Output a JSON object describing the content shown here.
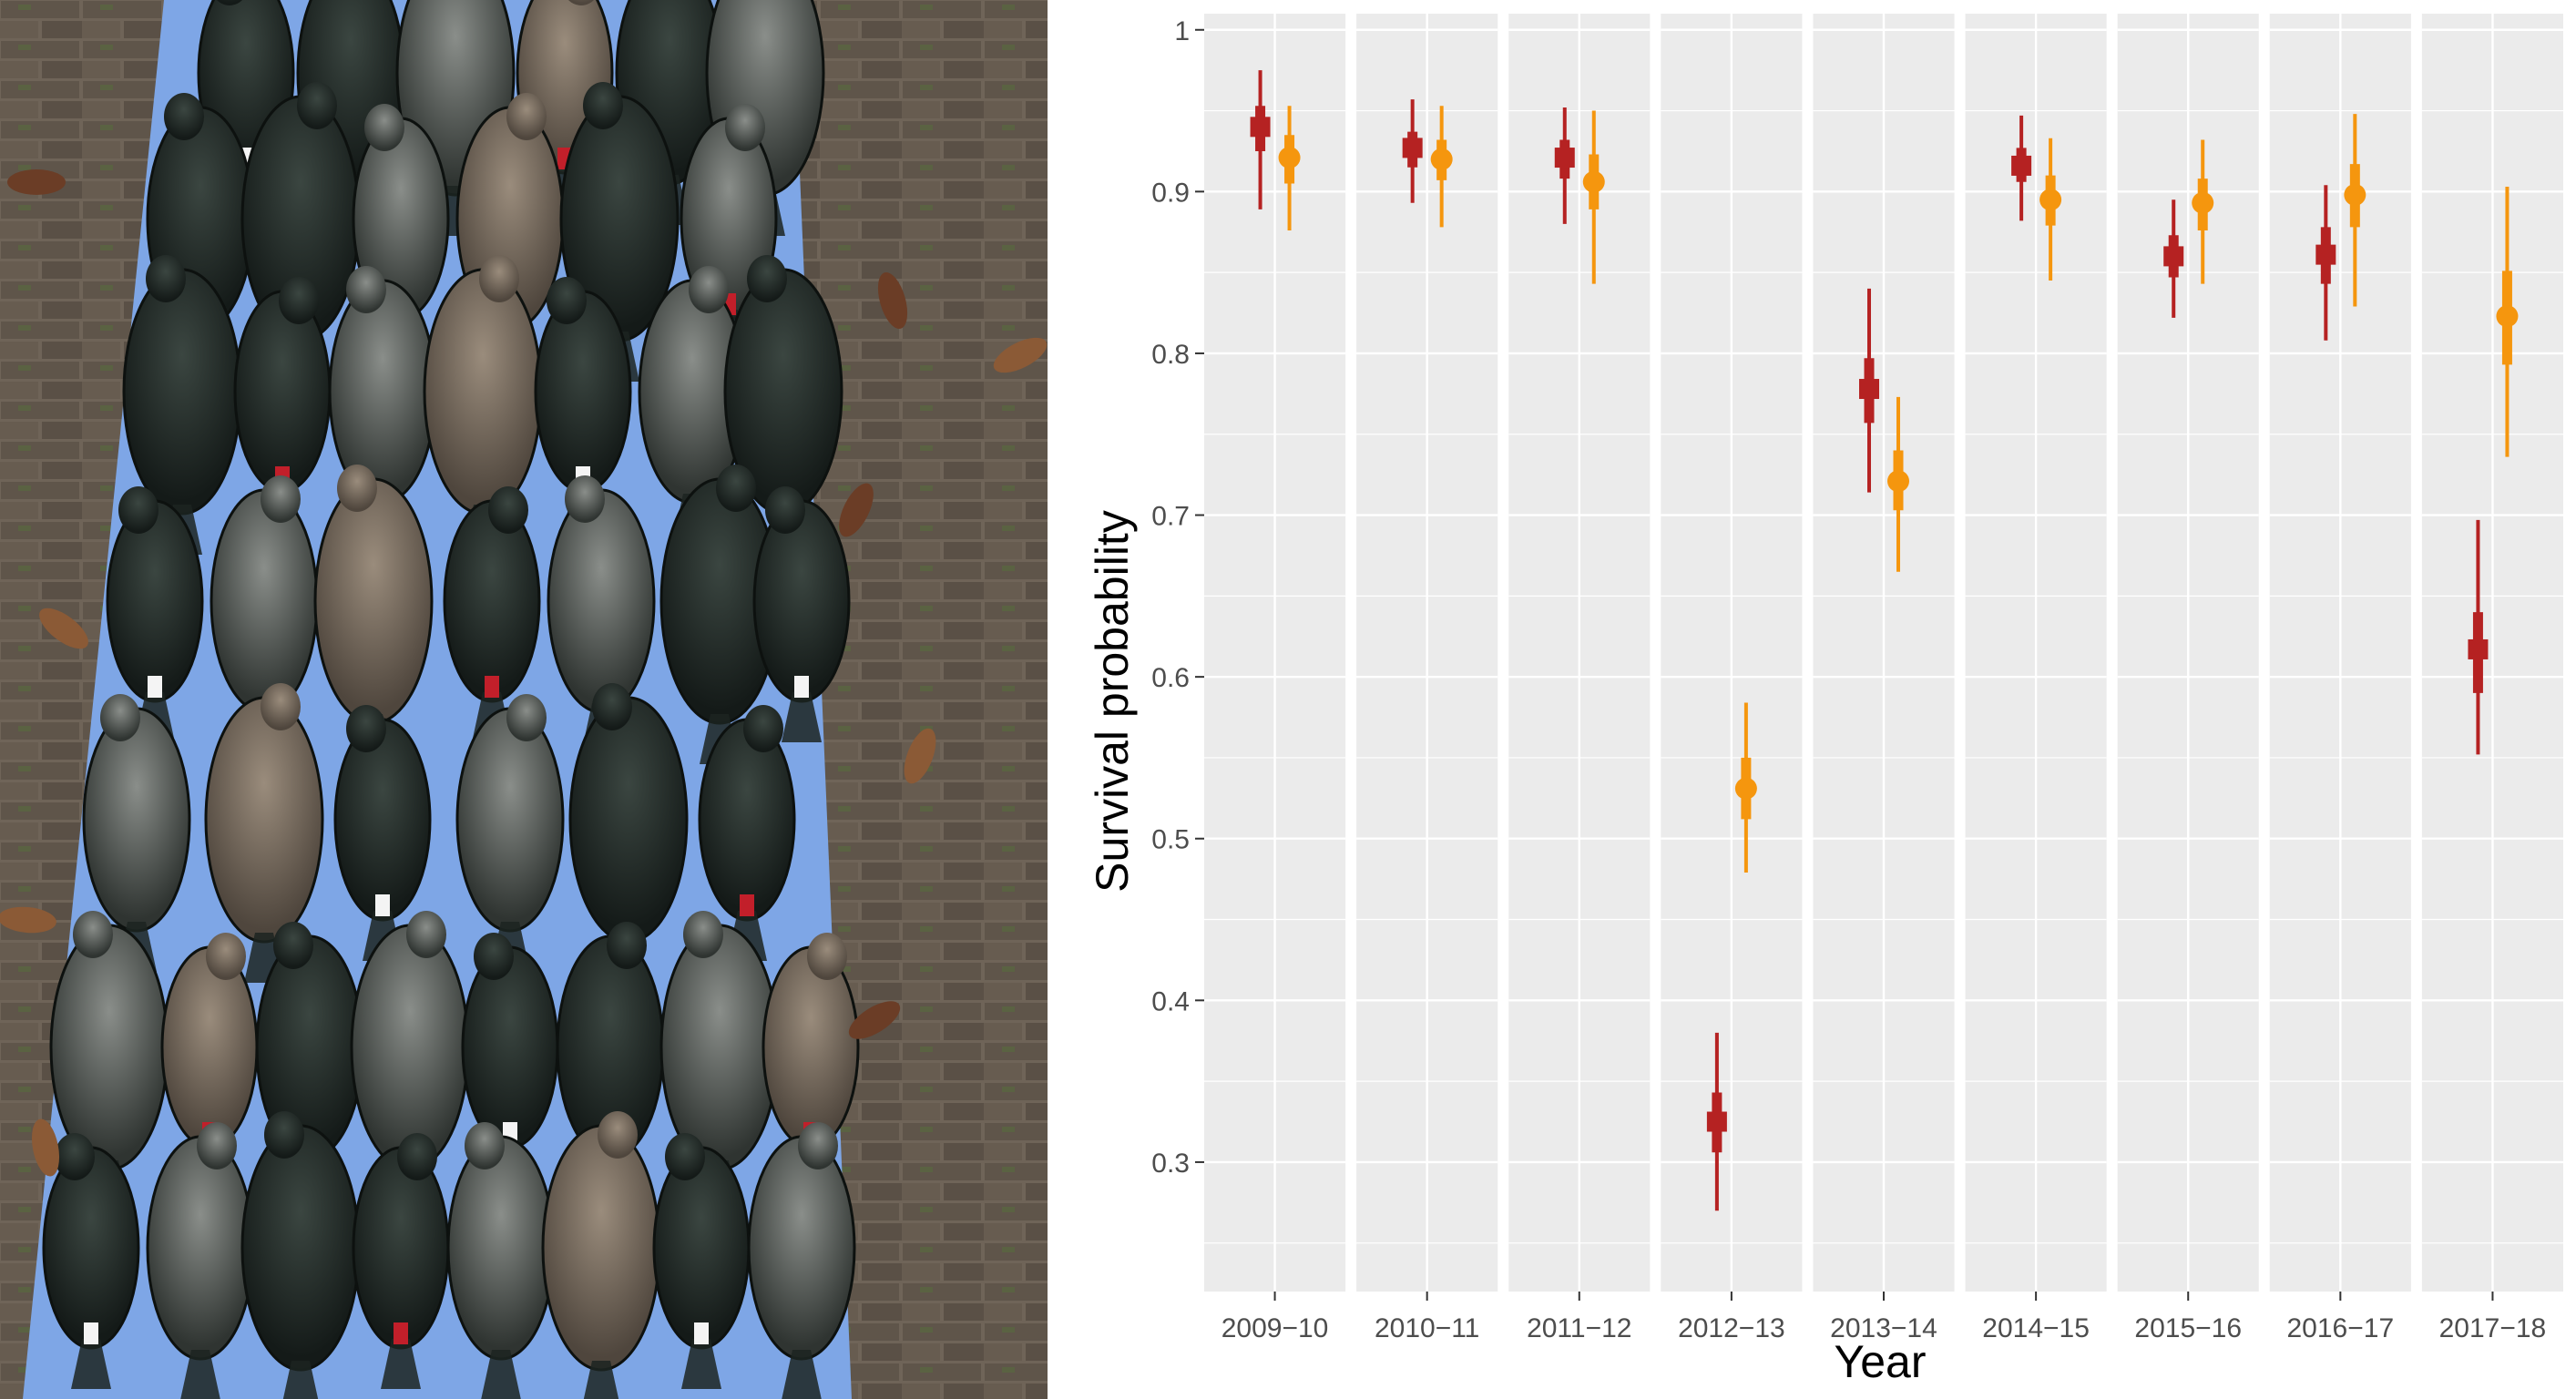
{
  "photo": {
    "subject": "birds-laid-out-on-tarp",
    "colors": {
      "tarp": "#7ea6e6",
      "bricks": "#6f6458",
      "moss": "#55703a",
      "bird_dark": "#1b2320",
      "bird_brown": "#6e6255",
      "leg_ring_white": "#f4f4f4",
      "leg_ring_red": "#c21f2a"
    }
  },
  "chart_data": {
    "type": "scatter",
    "subtype": "point-range-intervals",
    "categories": [
      "2009−10",
      "2010−11",
      "2011−12",
      "2012−13",
      "2013−14",
      "2014−15",
      "2015−16",
      "2016−17",
      "2017−18"
    ],
    "xlabel": "Year",
    "ylabel": "Survival probability",
    "ylim": [
      0.22,
      1.01
    ],
    "yticks": [
      0.3,
      0.4,
      0.5,
      0.6,
      0.7,
      0.8,
      0.9,
      1.0
    ],
    "ytick_labels": [
      "0.3",
      "0.4",
      "0.5",
      "0.6",
      "0.7",
      "0.8",
      "0.9",
      "1"
    ],
    "grid": true,
    "facet_by_category": true,
    "legend": "none",
    "series": [
      {
        "marker": "square",
        "color": "#b52222",
        "values": [
          0.94,
          0.927,
          0.921,
          0.325,
          0.778,
          0.916,
          0.86,
          0.861,
          0.617
        ],
        "inner_lo": [
          0.925,
          0.915,
          0.908,
          0.306,
          0.757,
          0.906,
          0.847,
          0.843,
          0.59
        ],
        "inner_hi": [
          0.953,
          0.937,
          0.932,
          0.343,
          0.797,
          0.927,
          0.873,
          0.878,
          0.64
        ],
        "outer_lo": [
          0.889,
          0.893,
          0.88,
          0.27,
          0.714,
          0.882,
          0.822,
          0.808,
          0.552
        ],
        "outer_hi": [
          0.975,
          0.957,
          0.952,
          0.38,
          0.84,
          0.947,
          0.895,
          0.904,
          0.697
        ]
      },
      {
        "marker": "circle",
        "color": "#f5960e",
        "values": [
          0.921,
          0.92,
          0.906,
          0.531,
          0.721,
          0.895,
          0.893,
          0.898,
          0.823
        ],
        "inner_lo": [
          0.905,
          0.907,
          0.889,
          0.512,
          0.703,
          0.879,
          0.876,
          0.878,
          0.793
        ],
        "inner_hi": [
          0.935,
          0.932,
          0.923,
          0.55,
          0.74,
          0.91,
          0.908,
          0.917,
          0.851
        ],
        "outer_lo": [
          0.876,
          0.878,
          0.843,
          0.479,
          0.665,
          0.845,
          0.843,
          0.829,
          0.736
        ],
        "outer_hi": [
          0.953,
          0.953,
          0.95,
          0.584,
          0.773,
          0.933,
          0.932,
          0.948,
          0.903
        ]
      }
    ]
  }
}
